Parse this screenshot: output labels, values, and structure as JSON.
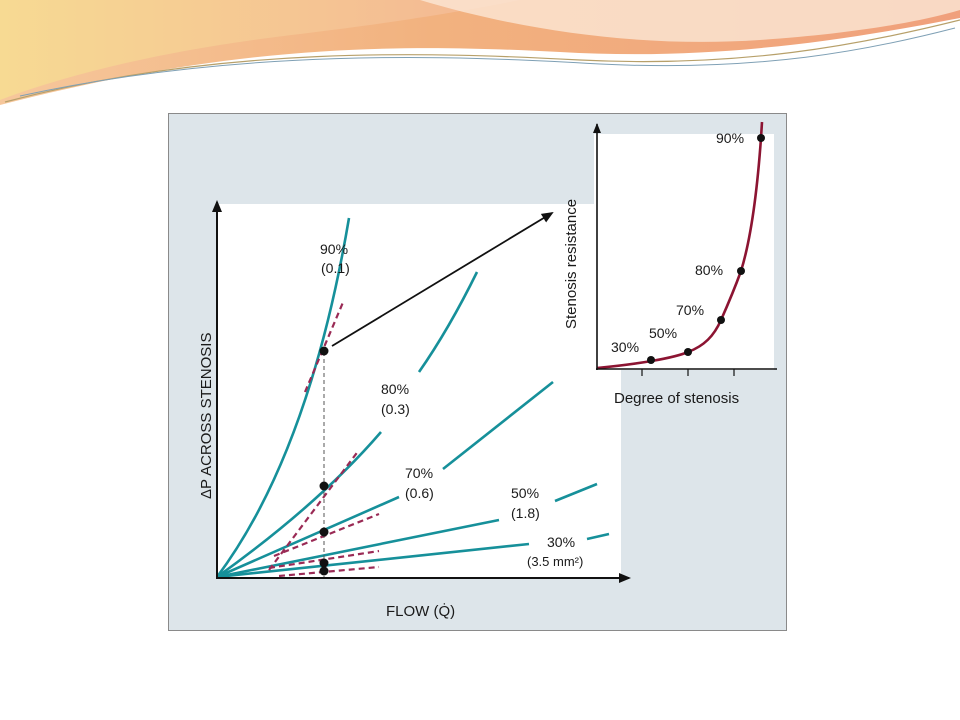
{
  "colors": {
    "curve": "#16909a",
    "tangent": "#9a2a55",
    "inset_curve": "#8c1432",
    "axis": "#111111",
    "panel_bg": "#dde5ea",
    "banner_orange": "#f1b08a",
    "banner_gold": "#f4d98e"
  },
  "main_chart": {
    "x_axis_label": "FLOW (Q̇)",
    "y_axis_label": "ΔP ACROSS STENOSIS",
    "curves": [
      {
        "percent": "90%",
        "area": "(0.1)"
      },
      {
        "percent": "80%",
        "area": "(0.3)"
      },
      {
        "percent": "70%",
        "area": "(0.6)"
      },
      {
        "percent": "50%",
        "area": "(1.8)"
      },
      {
        "percent": "30%",
        "area": "(3.5 mm²)"
      }
    ]
  },
  "inset_chart": {
    "x_axis_label": "Degree of stenosis",
    "y_axis_label": "Stenosis resistance",
    "points": [
      {
        "label": "30%"
      },
      {
        "label": "50%"
      },
      {
        "label": "70%"
      },
      {
        "label": "80%"
      },
      {
        "label": "90%"
      }
    ]
  }
}
